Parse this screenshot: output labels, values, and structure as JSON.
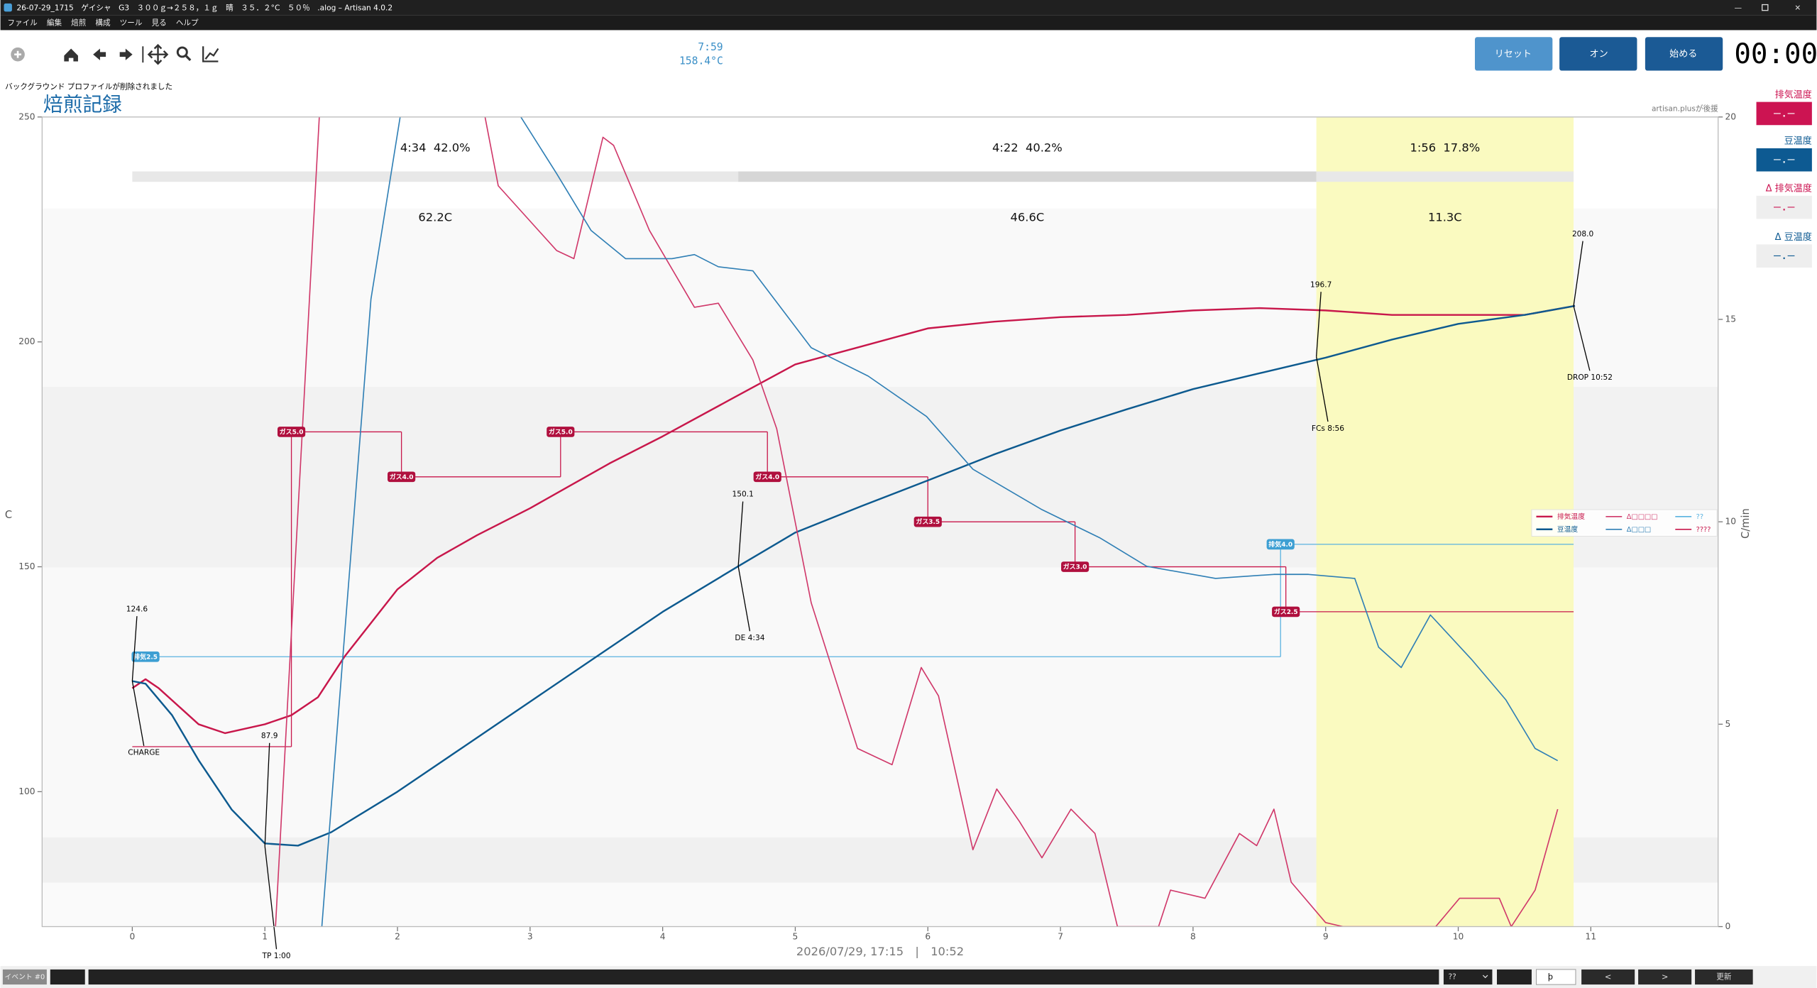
{
  "window": {
    "title": "26-07-29_1715　ゲイシャ　G3　３００ｇ→２５８，１ｇ　晴　３５．２°C　５０％　.alog – Artisan 4.0.2",
    "menu": [
      "ファイル",
      "編集",
      "焙煎",
      "構成",
      "ツール",
      "見る",
      "ヘルプ"
    ]
  },
  "toolbar": {
    "readout_time": "7:59",
    "readout_temp": "158.4°C",
    "message": "バックグラウンド プロファイルが削除されました",
    "buttons": [
      "リセット",
      "オン",
      "始める"
    ],
    "timer": "00:00"
  },
  "lcds": [
    {
      "label": "排気温度",
      "value": "–.–"
    },
    {
      "label": "豆温度",
      "value": "–.–"
    },
    {
      "label": "Δ 排気温度",
      "value": "–.–"
    },
    {
      "label": "Δ 豆温度",
      "value": "–.–"
    }
  ],
  "bottom_bar": {
    "event_label": "イベント #0",
    "combo": "??",
    "spin": "þ",
    "buttons": [
      "<",
      ">",
      "更新"
    ]
  },
  "chart_data": {
    "type": "line",
    "title": "焙煎記録",
    "sponsor": "artisan.plusが後援",
    "xlabel": "2026/07/29, 17:15　|　10:52",
    "ylabel": "C",
    "y2label": "C/min",
    "xlim": [
      -0.68,
      11.96
    ],
    "xticks": [
      0,
      1,
      2,
      3,
      4,
      5,
      6,
      7,
      8,
      9,
      10,
      11
    ],
    "ylim": [
      70,
      250
    ],
    "yticks": [
      100,
      150,
      200,
      250
    ],
    "y2lim": [
      0,
      20
    ],
    "y2ticks": [
      0,
      5,
      10,
      15,
      20
    ],
    "legend": "right",
    "series": [
      {
        "name": "排気温度",
        "color": "#c8174b",
        "axis": "y",
        "x": [
          0,
          0.1,
          0.2,
          0.5,
          0.7,
          1,
          1.2,
          1.4,
          1.6,
          2,
          2.3,
          2.6,
          3,
          3.3,
          3.6,
          4,
          4.5,
          5,
          5.5,
          6,
          6.5,
          7,
          7.5,
          8,
          8.5,
          9,
          9.5,
          10,
          10.5,
          10.88
        ],
        "values": [
          123,
          125,
          123,
          115,
          113,
          115,
          117,
          121,
          130,
          145,
          152,
          157,
          163,
          168,
          173,
          179,
          187,
          195,
          199,
          203,
          204.5,
          205.5,
          206,
          207,
          207.5,
          207,
          206,
          206,
          206,
          208
        ]
      },
      {
        "name": "豆温度",
        "color": "#0d5a8f",
        "axis": "y",
        "x": [
          0,
          0.1,
          0.3,
          0.5,
          0.75,
          1,
          1.25,
          1.5,
          2,
          2.5,
          3,
          3.5,
          4,
          4.57,
          5,
          5.5,
          6,
          6.5,
          7,
          7.5,
          8,
          8.5,
          9,
          9.5,
          10,
          10.5,
          10.88
        ],
        "values": [
          124.6,
          124,
          117,
          107,
          96,
          88.5,
          88,
          91,
          100,
          110,
          120,
          130,
          140,
          150.1,
          157.6,
          163.5,
          169.2,
          175,
          180.3,
          185,
          189.5,
          193,
          196.5,
          200.5,
          204,
          206,
          208
        ]
      },
      {
        "name": "Δ□□□□",
        "color": "#d0386a",
        "axis": "y2",
        "x": [
          1.08,
          1.41,
          null,
          2.66,
          2.76,
          3.2,
          3.33,
          3.55,
          3.63,
          3.9,
          4.24,
          4.42,
          4.68,
          4.86,
          5.12,
          5.47,
          5.73,
          5.95,
          6.08,
          6.34,
          6.52,
          6.69,
          6.86,
          7.08,
          7.26,
          7.43,
          7.74,
          7.83,
          8.09,
          8.35,
          8.48,
          8.61,
          8.74,
          9.0,
          9.13,
          9.83,
          10.01,
          10.31,
          10.4,
          10.58,
          10.75
        ],
        "values": [
          0,
          20,
          null,
          20,
          18.3,
          16.7,
          16.5,
          19.5,
          19.3,
          17.2,
          15.3,
          15.4,
          14,
          12.3,
          8,
          4.4,
          4,
          6.4,
          5.7,
          1.9,
          3.4,
          2.6,
          1.7,
          2.9,
          2.3,
          0,
          0,
          0.9,
          0.7,
          2.3,
          2,
          2.9,
          1.1,
          0.1,
          0,
          0,
          0.7,
          0.7,
          0,
          0.9,
          2.9
        ]
      },
      {
        "name": "Δ□□□",
        "color": "#2f7fb5",
        "axis": "y2",
        "x": [
          1.43,
          1.62,
          1.8,
          2.02,
          null,
          2.93,
          3.2,
          3.46,
          3.72,
          4.07,
          4.24,
          4.42,
          4.68,
          5.12,
          5.55,
          5.99,
          6.34,
          6.86,
          7.3,
          7.65,
          8.17,
          8.61,
          8.87,
          9.22,
          9.4,
          9.57,
          9.79,
          10.1,
          10.36,
          10.58,
          10.75
        ],
        "values": [
          0,
          8,
          15.5,
          20,
          null,
          20,
          18.6,
          17.2,
          16.5,
          16.5,
          16.6,
          16.3,
          16.2,
          14.3,
          13.6,
          12.6,
          11.3,
          10.3,
          9.6,
          8.9,
          8.6,
          8.7,
          8.7,
          8.6,
          6.9,
          6.4,
          7.7,
          6.6,
          5.6,
          4.4,
          4.1
        ]
      },
      {
        "name": "??",
        "color": "#5ab2e0",
        "axis": "y",
        "x": [
          0.1,
          8.66
        ],
        "values": [
          130,
          155
        ],
        "event_labels": [
          "排気2.5",
          "排気4.0"
        ]
      },
      {
        "name": "????",
        "color": "#c8174b",
        "axis": "y",
        "x": [
          0,
          1.2,
          2.03,
          3.23,
          4.79,
          6.0,
          7.11,
          8.7
        ],
        "values": [
          110,
          180,
          170,
          180,
          170,
          160,
          150,
          140
        ],
        "event_labels": [
          null,
          "ガス5.0",
          "ガス4.0",
          "ガス5.0",
          "ガス4.0",
          "ガス3.5",
          "ガス3.0",
          "ガス2.5"
        ]
      }
    ],
    "annotations": [
      {
        "label": "CHARGE",
        "x": 0,
        "y": 124.6,
        "value_label": "124.6"
      },
      {
        "label": "TP 1:00",
        "x": 1,
        "y": 87.9,
        "value_label": "87.9"
      },
      {
        "label": "DE 4:34",
        "x": 4.57,
        "y": 150.1,
        "value_label": "150.1"
      },
      {
        "label": "FCs 8:56",
        "x": 8.93,
        "y": 196.7,
        "value_label": "196.7"
      },
      {
        "label": "DROP 10:52",
        "x": 10.87,
        "y": 208.0,
        "value_label": "208.0"
      }
    ],
    "phases": [
      {
        "label": "4:34  42.0%",
        "delta": "62.2C",
        "start": 0,
        "end": 4.57
      },
      {
        "label": "4:22  40.2%",
        "delta": "46.6C",
        "start": 4.57,
        "end": 8.93
      },
      {
        "label": "1:56  17.8%",
        "delta": "11.3C",
        "start": 8.93,
        "end": 10.87
      }
    ]
  }
}
